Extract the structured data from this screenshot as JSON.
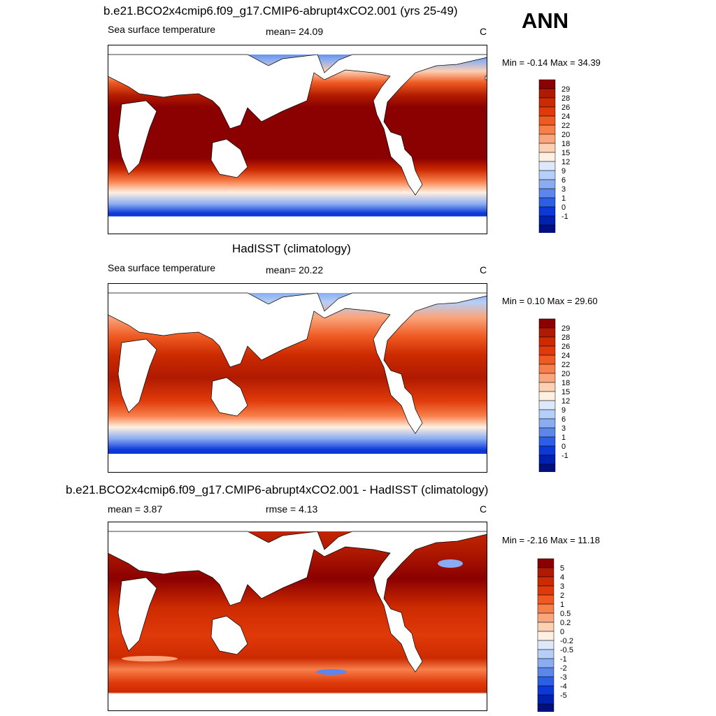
{
  "season": "ANN",
  "panels": [
    {
      "title": "b.e21.BCO2x4cmip6.f09_g17.CMIP6-abrupt4xCO2.001 (yrs 25-49)",
      "left_label": "Sea surface temperature",
      "stat_label": "mean=  24.09",
      "units": "C",
      "minmax": "Min =  -0.14 Max =  34.39",
      "colorbar": {
        "labels": [
          "29",
          "28",
          "26",
          "24",
          "22",
          "20",
          "18",
          "15",
          "12",
          "9",
          "6",
          "3",
          "1",
          "0",
          "-1"
        ],
        "colors": [
          "#8b0000",
          "#b01a00",
          "#cc2a00",
          "#e03a0a",
          "#ef5a22",
          "#f77f4a",
          "#fba57c",
          "#fdcfb3",
          "#fff0e1",
          "#dde9fb",
          "#b6cff8",
          "#8aadf2",
          "#5b87ec",
          "#2d5fe6",
          "#0c38d8",
          "#0020b0",
          "#001080"
        ]
      }
    },
    {
      "title": "HadISST (climatology)",
      "left_label": "Sea surface temperature",
      "stat_label": "mean=  20.22",
      "units": "C",
      "minmax": "Min =   0.10 Max =  29.60",
      "colorbar": {
        "labels": [
          "29",
          "28",
          "26",
          "24",
          "22",
          "20",
          "18",
          "15",
          "12",
          "9",
          "6",
          "3",
          "1",
          "0",
          "-1"
        ],
        "colors": [
          "#8b0000",
          "#b01a00",
          "#cc2a00",
          "#e03a0a",
          "#ef5a22",
          "#f77f4a",
          "#fba57c",
          "#fdcfb3",
          "#fff0e1",
          "#dde9fb",
          "#b6cff8",
          "#8aadf2",
          "#5b87ec",
          "#2d5fe6",
          "#0c38d8",
          "#0020b0",
          "#001080"
        ]
      }
    },
    {
      "title": "b.e21.BCO2x4cmip6.f09_g17.CMIP6-abrupt4xCO2.001 - HadISST (climatology)",
      "left_label": "mean =   3.87",
      "stat_label": "rmse =   4.13",
      "units": "C",
      "minmax": "Min =  -2.16 Max =  11.18",
      "colorbar": {
        "labels": [
          "5",
          "4",
          "3",
          "2",
          "1",
          "0.5",
          "0.2",
          "0",
          "-0.2",
          "-0.5",
          "-1",
          "-2",
          "-3",
          "-4",
          "-5"
        ],
        "colors": [
          "#8b0000",
          "#b01a00",
          "#cc2a00",
          "#e03a0a",
          "#ef5a22",
          "#f77f4a",
          "#fba57c",
          "#fdcfb3",
          "#fff0e1",
          "#dde9fb",
          "#b6cff8",
          "#8aadf2",
          "#5b87ec",
          "#2d5fe6",
          "#0c38d8",
          "#0020b0",
          "#001080"
        ]
      }
    }
  ],
  "colors": {
    "land": "#ffffff",
    "coast": "#000000"
  }
}
